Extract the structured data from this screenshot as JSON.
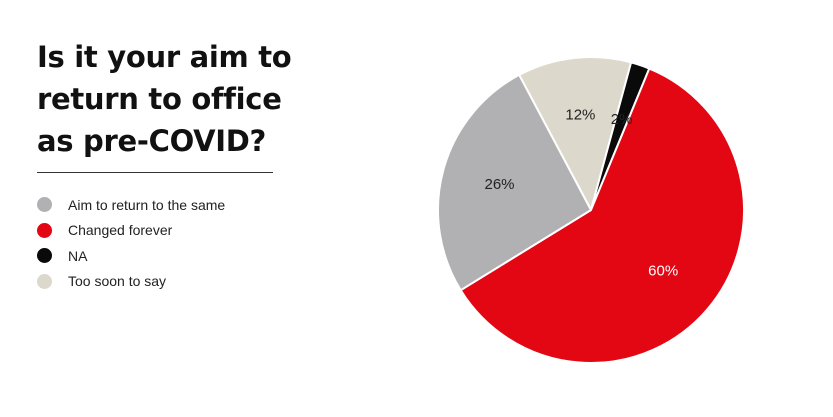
{
  "chart_data": {
    "type": "pie",
    "title": "Is it your aim to return to office as pre-COVID?",
    "legend_position": "left",
    "slices": [
      {
        "label": "Aim to return to the same",
        "value": 26,
        "display": "26%",
        "color": "#b1b1b3",
        "text_color": "#222222"
      },
      {
        "label": "Changed forever",
        "value": 60,
        "display": "60%",
        "color": "#e30613",
        "text_color": "#ffffff"
      },
      {
        "label": "NA",
        "value": 2,
        "display": "2%",
        "color": "#0a0a0a",
        "text_color": "#222222"
      },
      {
        "label": "Too soon to say",
        "value": 12,
        "display": "12%",
        "color": "#ddd8cc",
        "text_color": "#222222"
      }
    ],
    "draw_order": [
      "Too soon to say",
      "NA",
      "Changed forever",
      "Aim to return to the same"
    ]
  }
}
